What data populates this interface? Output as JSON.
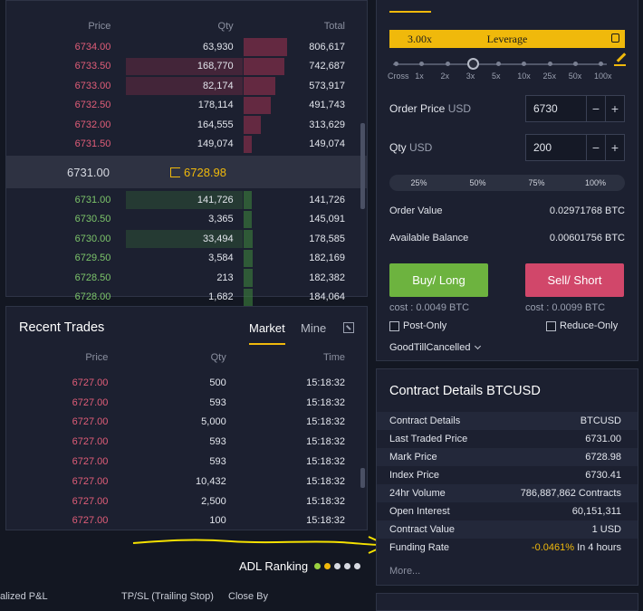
{
  "orderbook": {
    "headers": {
      "price": "Price",
      "qty": "Qty",
      "total": "Total"
    },
    "asks": [
      {
        "price": "6734.00",
        "qty": "63,930",
        "total": "806,617",
        "qty_frac": 0.0,
        "tot_frac": 0.39
      },
      {
        "price": "6733.50",
        "qty": "168,770",
        "total": "742,687",
        "qty_frac": 0.98,
        "tot_frac": 0.36
      },
      {
        "price": "6733.00",
        "qty": "82,174",
        "total": "573,917",
        "qty_frac": 0.98,
        "tot_frac": 0.28
      },
      {
        "price": "6732.50",
        "qty": "178,114",
        "total": "491,743",
        "qty_frac": 0.0,
        "tot_frac": 0.24
      },
      {
        "price": "6732.00",
        "qty": "164,555",
        "total": "313,629",
        "qty_frac": 0.0,
        "tot_frac": 0.15
      },
      {
        "price": "6731.50",
        "qty": "149,074",
        "total": "149,074",
        "qty_frac": 0.0,
        "tot_frac": 0.07
      }
    ],
    "last_price": "6731.00",
    "mark_price": "6728.98",
    "bids": [
      {
        "price": "6731.00",
        "qty": "141,726",
        "total": "141,726",
        "qty_frac": 0.98,
        "tot_frac": 0.07
      },
      {
        "price": "6730.50",
        "qty": "3,365",
        "total": "145,091",
        "qty_frac": 0.0,
        "tot_frac": 0.07
      },
      {
        "price": "6730.00",
        "qty": "33,494",
        "total": "178,585",
        "qty_frac": 0.98,
        "tot_frac": 0.08
      },
      {
        "price": "6729.50",
        "qty": "3,584",
        "total": "182,169",
        "qty_frac": 0.0,
        "tot_frac": 0.08
      },
      {
        "price": "6728.50",
        "qty": "213",
        "total": "182,382",
        "qty_frac": 0.0,
        "tot_frac": 0.08
      },
      {
        "price": "6728.00",
        "qty": "1,682",
        "total": "184,064",
        "qty_frac": 0.0,
        "tot_frac": 0.08
      }
    ]
  },
  "recent_trades": {
    "title": "Recent Trades",
    "tabs": [
      "Market",
      "Mine"
    ],
    "active_tab": "Market",
    "headers": {
      "price": "Price",
      "qty": "Qty",
      "time": "Time"
    },
    "rows": [
      {
        "price": "6727.00",
        "qty": "500",
        "time": "15:18:32"
      },
      {
        "price": "6727.00",
        "qty": "593",
        "time": "15:18:32"
      },
      {
        "price": "6727.00",
        "qty": "5,000",
        "time": "15:18:32"
      },
      {
        "price": "6727.00",
        "qty": "593",
        "time": "15:18:32"
      },
      {
        "price": "6727.00",
        "qty": "593",
        "time": "15:18:32"
      },
      {
        "price": "6727.00",
        "qty": "10,432",
        "time": "15:18:32"
      },
      {
        "price": "6727.00",
        "qty": "2,500",
        "time": "15:18:32"
      },
      {
        "price": "6727.00",
        "qty": "100",
        "time": "15:18:32"
      }
    ]
  },
  "adl": {
    "label": "ADL Ranking",
    "dot_colors": [
      "#9bd13f",
      "#f0b90b",
      "#d7dae2",
      "#d7dae2",
      "#d7dae2"
    ]
  },
  "bottom_tabs": {
    "pnl": "alized P&L",
    "tpsl": "TP/SL (Trailing Stop)",
    "close_by": "Close By"
  },
  "order_form": {
    "leverage_value": "3.00x",
    "leverage_label": "Leverage",
    "leverage_options": [
      "Cross",
      "1x",
      "2x",
      "3x",
      "5x",
      "10x",
      "25x",
      "50x",
      "100x"
    ],
    "selected_leverage": "3x",
    "order_price_label": "Order Price",
    "order_price_unit": "USD",
    "order_price_value": "6730",
    "qty_label": "Qty",
    "qty_unit": "USD",
    "qty_value": "200",
    "percent_options": [
      "25%",
      "50%",
      "75%",
      "100%"
    ],
    "order_value_label": "Order Value",
    "order_value": "0.02971768 BTC",
    "available_balance_label": "Available Balance",
    "available_balance": "0.00601756 BTC",
    "buy_label": "Buy/ Long",
    "sell_label": "Sell/ Short",
    "buy_cost": "cost : 0.0049 BTC",
    "sell_cost": "cost : 0.0099 BTC",
    "post_only": "Post-Only",
    "reduce_only": "Reduce-Only",
    "time_in_force": "GoodTillCancelled",
    "minus": "−",
    "plus": "+"
  },
  "contract": {
    "title": "Contract Details BTCUSD",
    "rows": [
      {
        "label": "Contract Details",
        "value": "BTCUSD"
      },
      {
        "label": "Last Traded Price",
        "value": "6731.00"
      },
      {
        "label": "Mark Price",
        "value": "6728.98"
      },
      {
        "label": "Index Price",
        "value": "6730.41"
      },
      {
        "label": "24hr Volume",
        "value": "786,887,862 Contracts"
      },
      {
        "label": "Open Interest",
        "value": "60,151,311"
      },
      {
        "label": "Contract Value",
        "value": "1 USD"
      }
    ],
    "funding_label": "Funding Rate",
    "funding_rate": "-0.0461%",
    "funding_time": "In 4 hours",
    "more": "More..."
  },
  "colors": {
    "accent": "#f0b90b",
    "buy": "#6db33f",
    "sell": "#d1476a",
    "ask": "#e05d78",
    "bid": "#7cc46a"
  }
}
